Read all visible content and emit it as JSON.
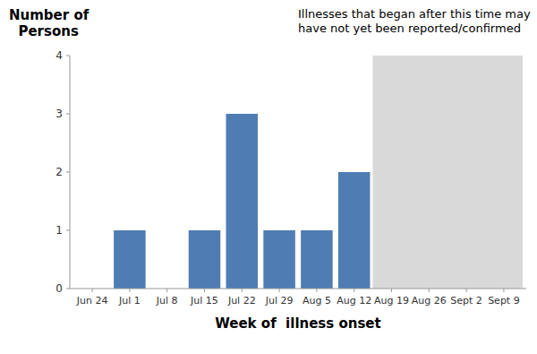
{
  "chart_data": {
    "type": "bar",
    "categories": [
      "Jun 24",
      "Jul 1",
      "Jul 8",
      "Jul 15",
      "Jul 22",
      "Jul 29",
      "Aug 5",
      "Aug 12",
      "Aug 19",
      "Aug 26",
      "Sept 2",
      "Sept 9"
    ],
    "values": [
      0,
      1,
      0,
      1,
      3,
      1,
      1,
      2,
      0,
      0,
      0,
      0
    ],
    "color": "#4f7db3",
    "xlabel": "Week of  illness onset",
    "ylabel": "Number of\n  Persons",
    "ylim": [
      0,
      4
    ],
    "yticks": [
      0,
      1,
      2,
      3,
      4
    ],
    "grid": false,
    "annotation": {
      "text": "Illnesses that began after this time may\nhave not yet been reported/confirmed",
      "start": "Aug 19",
      "color": "#d9d9d9"
    }
  }
}
